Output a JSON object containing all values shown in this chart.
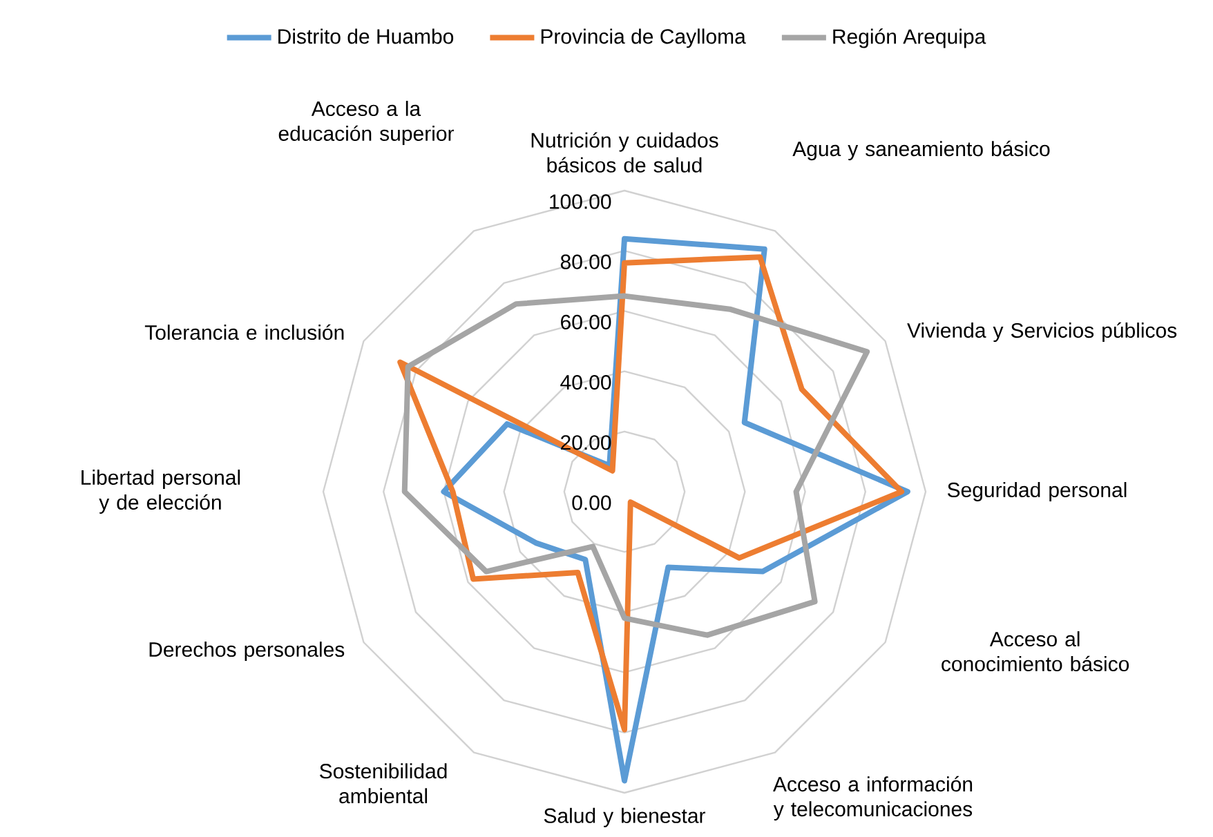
{
  "chart_data": {
    "type": "radar",
    "categories": [
      "Nutrición y cuidados básicos de salud",
      "Agua y saneamiento básico",
      "Vivienda y Servicios públicos",
      "Seguridad personal",
      "Acceso al conocimiento básico",
      "Acceso a información y telecomunicaciones",
      "Salud y bienestar",
      "Sostenibilidad ambiental",
      "Derechos personales",
      "Libertad personal y de elección",
      "Tolerancia e inclusión",
      "Acceso a la educación superior"
    ],
    "series": [
      {
        "name": "Distrito de Huambo",
        "color": "#5b9bd5",
        "values": [
          84,
          93,
          46,
          94,
          53,
          29,
          96,
          26,
          34,
          60,
          45,
          10
        ]
      },
      {
        "name": "Provincia de Caylloma",
        "color": "#ed7d31",
        "values": [
          76,
          90,
          68,
          92,
          44,
          4,
          79,
          31,
          58,
          57,
          86,
          8
        ]
      },
      {
        "name": "Región Arequipa",
        "color": "#a5a5a5",
        "values": [
          65,
          70,
          93,
          57,
          73,
          55,
          42,
          21,
          53,
          73,
          83,
          72
        ]
      }
    ],
    "ylim": [
      0,
      100
    ],
    "yticks": [
      {
        "value": 0,
        "label": "0.00"
      },
      {
        "value": 20,
        "label": "20.00"
      },
      {
        "value": 40,
        "label": "40.00"
      },
      {
        "value": 60,
        "label": "60.00"
      },
      {
        "value": 80,
        "label": "80.00"
      },
      {
        "value": 100,
        "label": "100.00"
      }
    ],
    "grid": true,
    "legend": "top"
  }
}
